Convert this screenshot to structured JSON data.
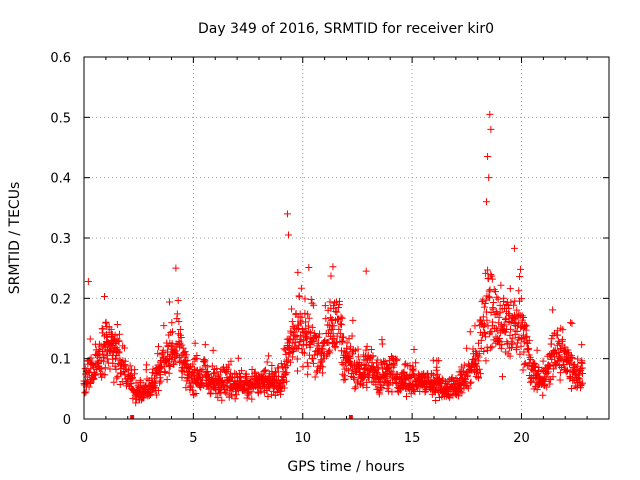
{
  "chart_data": {
    "type": "scatter",
    "title": "Day 349 of 2016, SRMTID for receiver kir0",
    "xlabel": "GPS time / hours",
    "ylabel": "SRMTID / TECUs",
    "xlim": [
      0,
      24
    ],
    "ylim": [
      0,
      0.6
    ],
    "xticks": [
      "0",
      "5",
      "10",
      "15",
      "20"
    ],
    "xtick_values": [
      0,
      5,
      10,
      15,
      20
    ],
    "yticks": [
      "0",
      "0.1",
      "0.2",
      "0.3",
      "0.4",
      "0.5",
      "0.6"
    ],
    "ytick_values": [
      0,
      0.1,
      0.2,
      0.3,
      0.4,
      0.5,
      0.6
    ],
    "grid": true,
    "marker": "+",
    "color": "#ff0000",
    "notable_points": [
      {
        "x": 9.3,
        "y": 0.34
      },
      {
        "x": 9.35,
        "y": 0.305
      },
      {
        "x": 18.55,
        "y": 0.505
      },
      {
        "x": 18.6,
        "y": 0.48
      },
      {
        "x": 18.45,
        "y": 0.435
      },
      {
        "x": 18.5,
        "y": 0.4
      },
      {
        "x": 18.4,
        "y": 0.36
      },
      {
        "x": 12.9,
        "y": 0.245
      },
      {
        "x": 4.2,
        "y": 0.25
      },
      {
        "x": 0.2,
        "y": 0.228
      }
    ],
    "gap_markers": [
      {
        "x": 2.2,
        "y": 0
      },
      {
        "x": 12.2,
        "y": 0
      }
    ],
    "activity_profile": [
      {
        "x": 0.0,
        "y": 0.06
      },
      {
        "x": 0.5,
        "y": 0.09
      },
      {
        "x": 1.0,
        "y": 0.12
      },
      {
        "x": 1.5,
        "y": 0.11
      },
      {
        "x": 2.0,
        "y": 0.07
      },
      {
        "x": 2.5,
        "y": 0.04
      },
      {
        "x": 3.0,
        "y": 0.05
      },
      {
        "x": 3.5,
        "y": 0.08
      },
      {
        "x": 4.0,
        "y": 0.11
      },
      {
        "x": 4.3,
        "y": 0.13
      },
      {
        "x": 4.8,
        "y": 0.07
      },
      {
        "x": 5.5,
        "y": 0.07
      },
      {
        "x": 6.0,
        "y": 0.06
      },
      {
        "x": 7.0,
        "y": 0.06
      },
      {
        "x": 8.0,
        "y": 0.06
      },
      {
        "x": 9.0,
        "y": 0.06
      },
      {
        "x": 9.5,
        "y": 0.13
      },
      {
        "x": 10.0,
        "y": 0.15
      },
      {
        "x": 10.5,
        "y": 0.12
      },
      {
        "x": 11.0,
        "y": 0.11
      },
      {
        "x": 11.5,
        "y": 0.16
      },
      {
        "x": 12.0,
        "y": 0.1
      },
      {
        "x": 12.5,
        "y": 0.08
      },
      {
        "x": 13.0,
        "y": 0.09
      },
      {
        "x": 13.5,
        "y": 0.07
      },
      {
        "x": 14.0,
        "y": 0.08
      },
      {
        "x": 14.5,
        "y": 0.06
      },
      {
        "x": 15.0,
        "y": 0.07
      },
      {
        "x": 15.5,
        "y": 0.06
      },
      {
        "x": 16.0,
        "y": 0.06
      },
      {
        "x": 16.5,
        "y": 0.05
      },
      {
        "x": 17.0,
        "y": 0.05
      },
      {
        "x": 17.5,
        "y": 0.07
      },
      {
        "x": 18.0,
        "y": 0.1
      },
      {
        "x": 18.5,
        "y": 0.2
      },
      {
        "x": 19.0,
        "y": 0.14
      },
      {
        "x": 19.5,
        "y": 0.16
      },
      {
        "x": 20.0,
        "y": 0.15
      },
      {
        "x": 20.5,
        "y": 0.08
      },
      {
        "x": 21.0,
        "y": 0.06
      },
      {
        "x": 21.5,
        "y": 0.12
      },
      {
        "x": 22.0,
        "y": 0.1
      },
      {
        "x": 22.5,
        "y": 0.08
      },
      {
        "x": 22.8,
        "y": 0.07
      }
    ]
  }
}
